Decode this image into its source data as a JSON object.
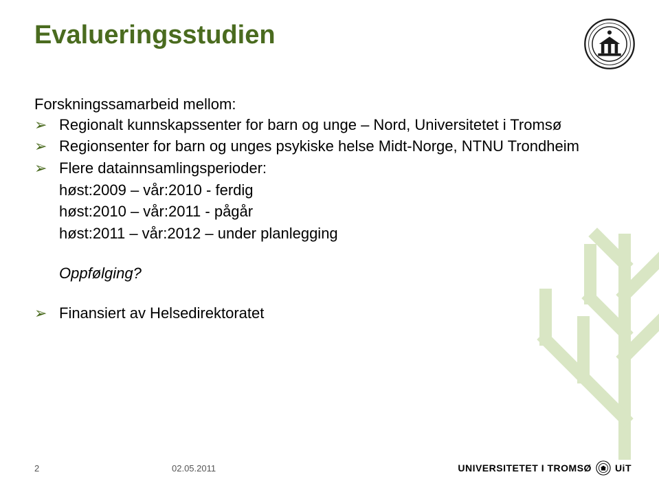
{
  "colors": {
    "title": "#4a6b1f",
    "bullet": "#4a6b1f",
    "body": "#000000",
    "tree": "#d9e6c4",
    "seal_ring": "#1a1a1a",
    "seal_fill": "#ffffff",
    "footer_text": "#555555"
  },
  "title": "Evalueringsstudien",
  "intro": "Forskningssamarbeid mellom:",
  "bullets": [
    {
      "text": "Regionalt kunnskapssenter for barn og unge – Nord, Universitetet i Tromsø"
    },
    {
      "text": "Regionsenter for barn og unges psykiske helse Midt-Norge, NTNU Trondheim"
    },
    {
      "text": "Flere datainnsamlingsperioder:",
      "sub": [
        "høst:2009 – vår:2010 - ferdig",
        "høst:2010 – vår:2011 - pågår",
        "høst:2011 – vår:2012 – under planlegging"
      ]
    }
  ],
  "followup": "Oppfølging?",
  "financed": "Finansiert av Helsedirektoratet",
  "footer": {
    "page": "2",
    "date": "02.05.2011",
    "brand_prefix": "UNIVERSITETET I TROMSØ",
    "brand_suffix": "UiT"
  }
}
